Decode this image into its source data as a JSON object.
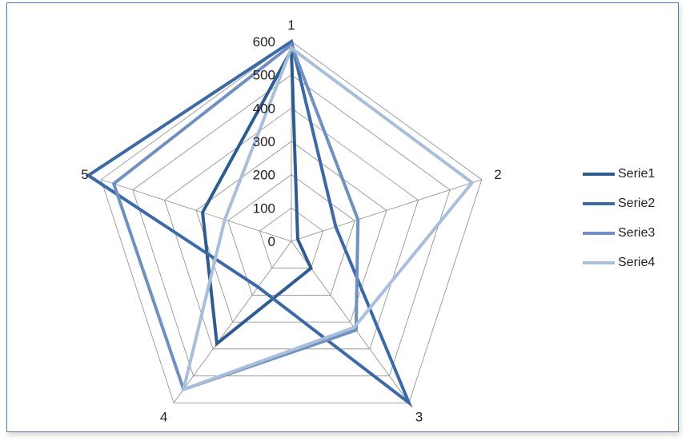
{
  "chart_data": {
    "type": "radar",
    "categories": [
      "1",
      "2",
      "3",
      "4",
      "5"
    ],
    "rlim": [
      0,
      600
    ],
    "ticks": [
      0,
      100,
      200,
      300,
      400,
      500,
      600
    ],
    "grid": true,
    "legend_position": "right",
    "series": [
      {
        "name": "Serie1",
        "color": "#2f5c8f",
        "values": [
          575,
          20,
          100,
          380,
          280
        ]
      },
      {
        "name": "Serie2",
        "color": "#3c6aa6",
        "values": [
          600,
          140,
          600,
          170,
          640
        ]
      },
      {
        "name": "Serie3",
        "color": "#6f90c0",
        "values": [
          590,
          210,
          330,
          550,
          560
        ]
      },
      {
        "name": "Serie4",
        "color": "#a9bedb",
        "values": [
          580,
          570,
          320,
          550,
          210
        ]
      }
    ]
  }
}
